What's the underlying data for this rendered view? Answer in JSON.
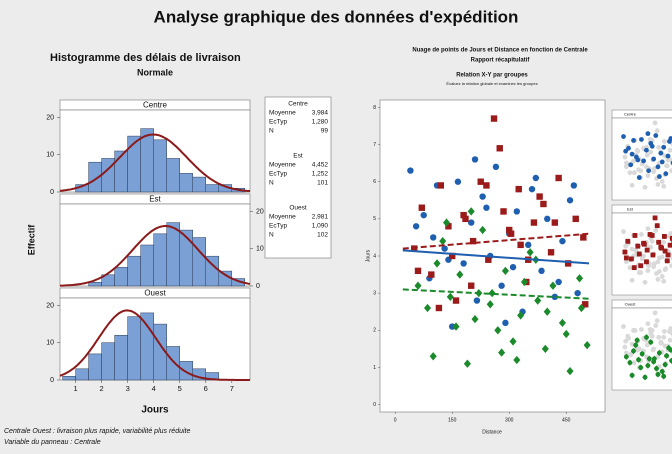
{
  "title": "Analyse graphique des données d'expédition",
  "notes": [
    "Centrale Ouest : livraison plus rapide, variabilité plus réduite",
    "Variable du panneau : Centrale"
  ],
  "chart_data": [
    {
      "type": "histogram",
      "title": "Histogramme des délais de livraison",
      "subtitle": "Normale",
      "xlabel": "Jours",
      "ylabel": "Effectif",
      "bins": [
        0.5,
        1,
        1.5,
        2,
        2.5,
        3,
        3.5,
        4,
        4.5,
        5,
        5.5,
        6,
        6.5,
        7,
        7.5
      ],
      "xlim": [
        0.4,
        7.7
      ],
      "xticks": [
        1,
        2,
        3,
        4,
        5,
        6,
        7
      ],
      "ylim": [
        0,
        22
      ],
      "yticks": [
        0,
        10,
        20
      ],
      "color": "#7ba0d6",
      "curve_color": "#8b1a1a",
      "stat_labels": [
        "Moyenne",
        "EcTyp",
        "N"
      ],
      "panels": [
        {
          "name": "Centre",
          "values": [
            0,
            2,
            8,
            9,
            11,
            15,
            17,
            14,
            9,
            5,
            4,
            2,
            2,
            1
          ],
          "stats": {
            "mean": {
              "value": 3.984,
              "label": "3,984"
            },
            "sd": {
              "value": 1.28,
              "label": "1,280"
            },
            "n": 99
          }
        },
        {
          "name": "Est",
          "values": [
            0,
            0,
            1,
            3,
            5,
            8,
            11,
            14,
            17,
            15,
            13,
            8,
            4,
            2
          ],
          "stats": {
            "mean": {
              "value": 4.452,
              "label": "4,452"
            },
            "sd": {
              "value": 1.252,
              "label": "1,252"
            },
            "n": 101
          }
        },
        {
          "name": "Ouest",
          "values": [
            1,
            3,
            7,
            10,
            12,
            17,
            18,
            15,
            9,
            5,
            3,
            2,
            0,
            0
          ],
          "stats": {
            "mean": {
              "value": 2.981,
              "label": "2,981"
            },
            "sd": {
              "value": 1.09,
              "label": "1,090"
            },
            "n": 102
          }
        }
      ]
    },
    {
      "type": "scatter",
      "title": "Nuage de points de Jours et Distance en fonction de Centrale",
      "subtitle": "Rapport récapitulatif",
      "heading": "Relation X-Y par groupes",
      "note": "Évaluez la relation globale et examinez les groupes",
      "xlabel": "Distance",
      "ylabel": "Jours",
      "xlim": [
        -40,
        552
      ],
      "xticks": [
        0,
        150,
        300,
        450
      ],
      "ylim": [
        -0.2,
        8.2
      ],
      "yticks": [
        0,
        1,
        2,
        3,
        4,
        5,
        6,
        7,
        8
      ],
      "series": [
        {
          "name": "Centre",
          "color": "#1f5fb0",
          "marker": "circle",
          "x": [
            40,
            75,
            90,
            110,
            130,
            150,
            165,
            180,
            200,
            215,
            230,
            250,
            265,
            280,
            300,
            320,
            335,
            350,
            370,
            385,
            400,
            420,
            440,
            460,
            480,
            55,
            140,
            210,
            290,
            360,
            430,
            100,
            240,
            310,
            470
          ],
          "values": [
            6.3,
            5.1,
            3.4,
            5.9,
            4.2,
            2.1,
            6.0,
            3.8,
            4.9,
            2.8,
            5.6,
            4.0,
            6.4,
            3.2,
            4.6,
            5.2,
            2.5,
            4.3,
            6.1,
            3.6,
            5.0,
            2.9,
            4.4,
            5.5,
            3.0,
            4.8,
            3.9,
            6.6,
            2.2,
            5.8,
            3.3,
            4.5,
            5.3,
            3.7,
            5.9
          ],
          "trend": {
            "x": [
              20,
              510
            ],
            "y": [
              4.15,
              3.8
            ],
            "dashed": false
          }
        },
        {
          "name": "Est",
          "color": "#9b1b1b",
          "marker": "square",
          "x": [
            50,
            70,
            95,
            120,
            140,
            160,
            185,
            205,
            225,
            245,
            260,
            285,
            305,
            325,
            345,
            365,
            390,
            410,
            430,
            455,
            475,
            495,
            115,
            200,
            275,
            330,
            380,
            150,
            420,
            60,
            240,
            300,
            350,
            500,
            180
          ],
          "values": [
            4.2,
            5.3,
            3.5,
            5.9,
            4.8,
            2.8,
            5.0,
            4.4,
            6.0,
            3.9,
            7.7,
            5.2,
            4.6,
            5.8,
            3.3,
            4.9,
            5.4,
            4.1,
            6.1,
            3.8,
            5.0,
            4.5,
            2.6,
            3.2,
            6.9,
            4.3,
            5.6,
            4.0,
            4.9,
            3.6,
            5.9,
            4.7,
            3.9,
            2.7,
            5.1
          ],
          "trend": {
            "x": [
              20,
              510
            ],
            "y": [
              4.2,
              4.6
            ],
            "dashed": true
          }
        },
        {
          "name": "Ouest",
          "color": "#1b8a2a",
          "marker": "diamond",
          "x": [
            60,
            85,
            100,
            125,
            145,
            170,
            190,
            210,
            230,
            255,
            270,
            290,
            310,
            330,
            355,
            375,
            395,
            415,
            440,
            460,
            485,
            505,
            110,
            160,
            220,
            280,
            340,
            400,
            450,
            135,
            250,
            320,
            370,
            490,
            200
          ],
          "values": [
            3.2,
            2.6,
            1.3,
            4.4,
            2.9,
            3.5,
            1.1,
            2.3,
            4.7,
            3.0,
            2.0,
            3.6,
            1.7,
            2.4,
            4.1,
            2.8,
            1.5,
            3.2,
            2.2,
            0.9,
            3.4,
            1.6,
            3.8,
            2.1,
            3.0,
            1.4,
            3.3,
            2.5,
            1.9,
            4.9,
            2.7,
            1.2,
            3.9,
            2.6,
            5.2
          ],
          "trend": {
            "x": [
              20,
              510
            ],
            "y": [
              3.1,
              2.85
            ],
            "dashed": true
          }
        }
      ],
      "mini_color": "#d9d9d9"
    }
  ]
}
